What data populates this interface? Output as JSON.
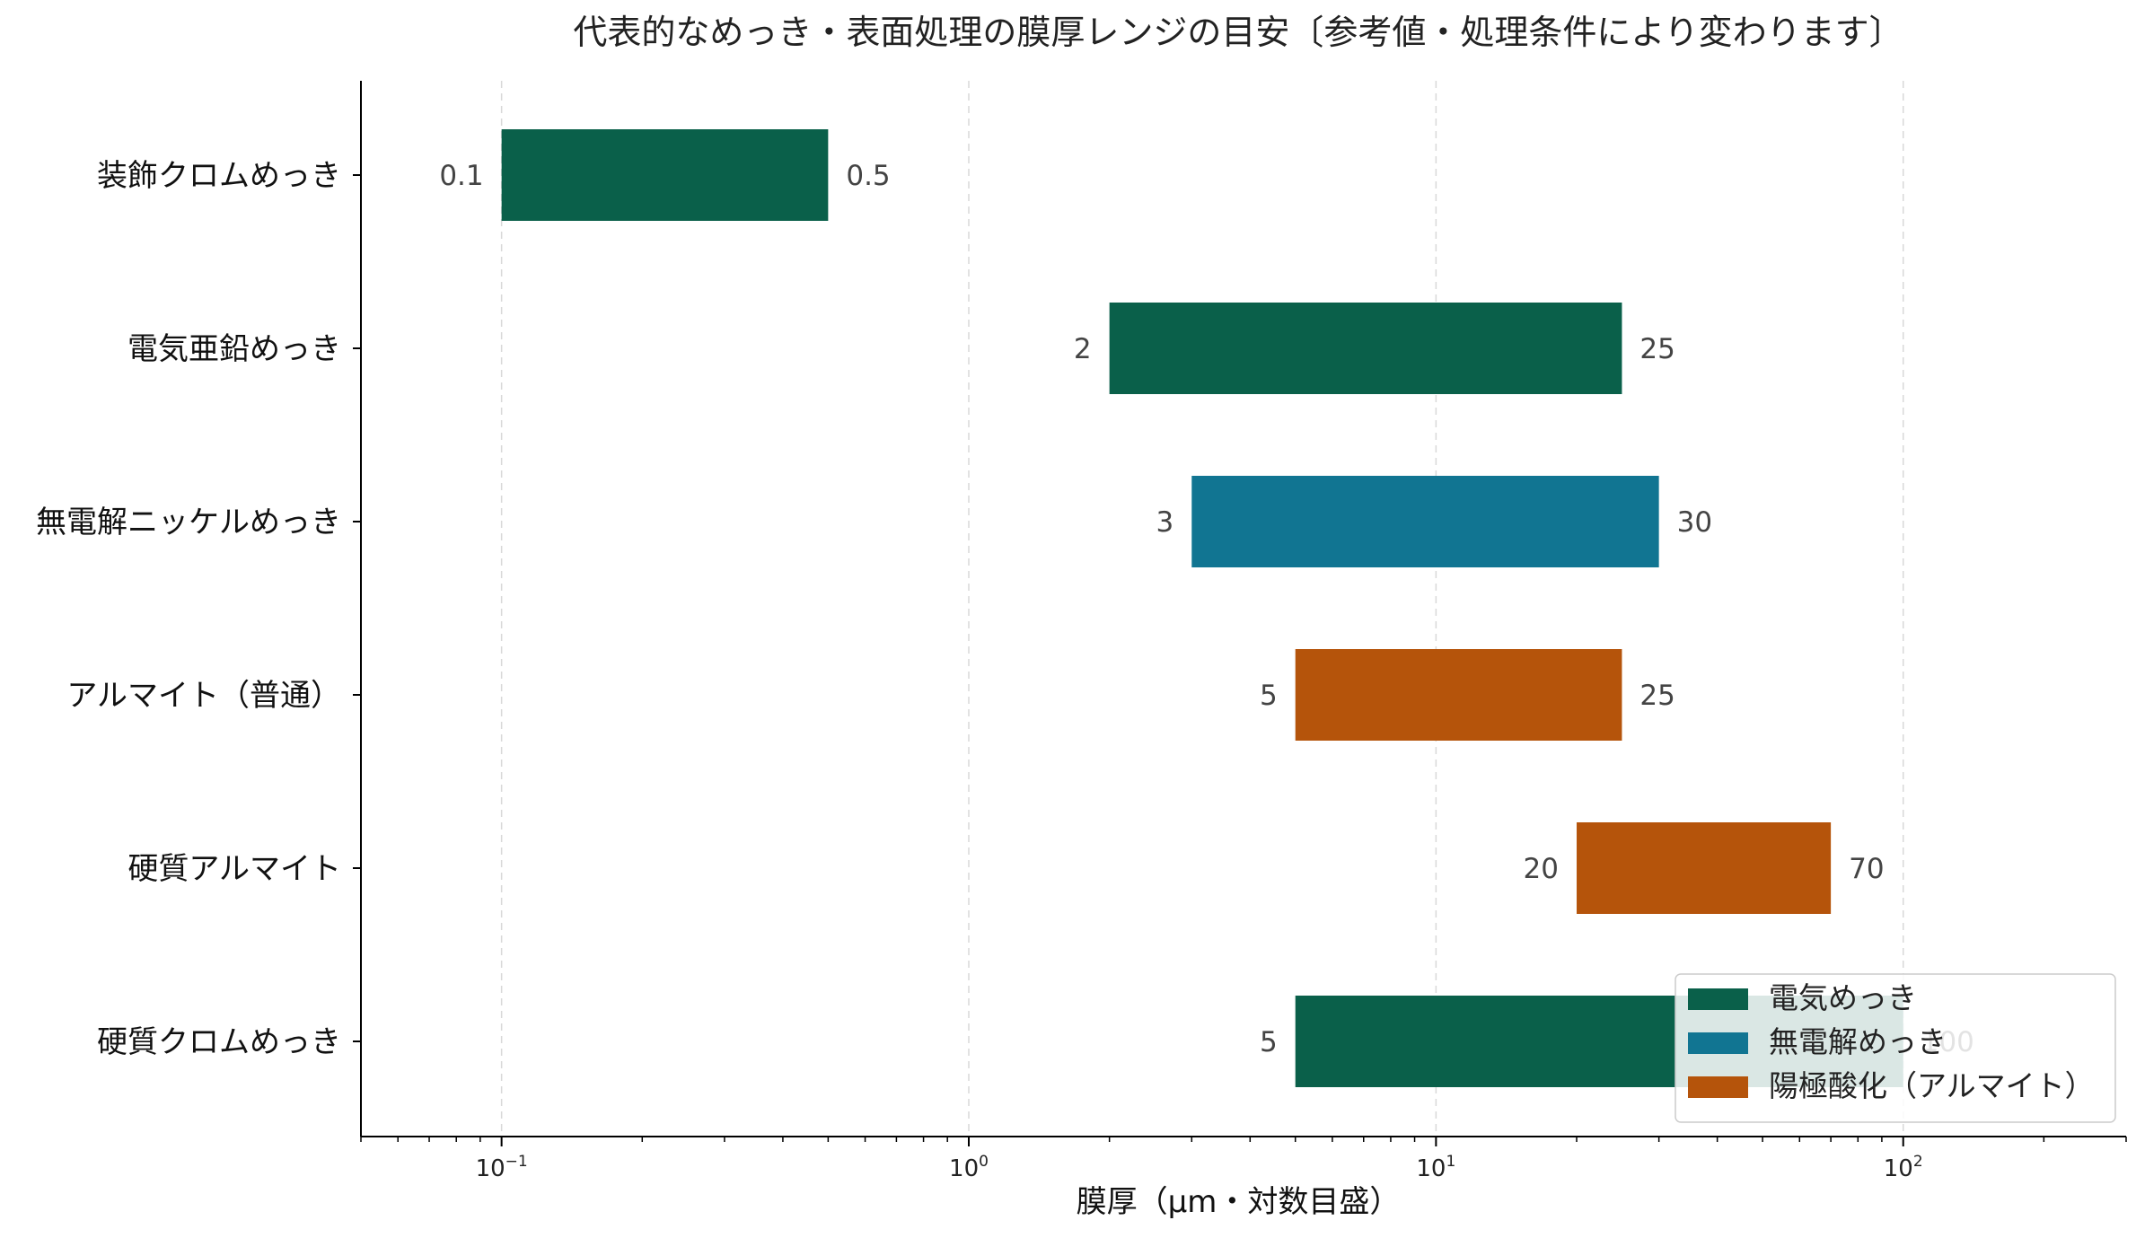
{
  "chart_data": {
    "type": "bar",
    "orientation": "horizontal-range",
    "title": "代表的なめっき・表面処理の膜厚レンジの目安〔参考値・処理条件により変わります〕",
    "xlabel": "膜厚（µm・対数目盛）",
    "ylabel": "",
    "xscale": "log",
    "xlim": [
      0.05,
      300
    ],
    "xticks": [
      {
        "value": 0.1,
        "base": "10",
        "exp": "−1"
      },
      {
        "value": 1,
        "base": "10",
        "exp": "0"
      },
      {
        "value": 10,
        "base": "10",
        "exp": "1"
      },
      {
        "value": 100,
        "base": "10",
        "exp": "2"
      }
    ],
    "grid": "vertical dashed at major ticks",
    "legend_position": "lower-right",
    "categories": [
      "装飾クロムめっき",
      "電気亜鉛めっき",
      "無電解ニッケルめっき",
      "アルマイト（普通）",
      "硬質アルマイト",
      "硬質クロムめっき"
    ],
    "bars": [
      {
        "category": "装飾クロムめっき",
        "min": 0.1,
        "max": 0.5,
        "min_label": "0.1",
        "max_label": "0.5",
        "group": 0
      },
      {
        "category": "電気亜鉛めっき",
        "min": 2,
        "max": 25,
        "min_label": "2",
        "max_label": "25",
        "group": 0
      },
      {
        "category": "無電解ニッケルめっき",
        "min": 3,
        "max": 30,
        "min_label": "3",
        "max_label": "30",
        "group": 1
      },
      {
        "category": "アルマイト（普通）",
        "min": 5,
        "max": 25,
        "min_label": "5",
        "max_label": "25",
        "group": 2
      },
      {
        "category": "硬質アルマイト",
        "min": 20,
        "max": 70,
        "min_label": "20",
        "max_label": "70",
        "group": 2
      },
      {
        "category": "硬質クロムめっき",
        "min": 5,
        "max": 100,
        "min_label": "5",
        "max_label": "100",
        "group": 0
      }
    ],
    "series": [
      {
        "name": "電気めっき",
        "color": "#0a604a"
      },
      {
        "name": "無電解めっき",
        "color": "#117592"
      },
      {
        "name": "陽極酸化（アルマイト）",
        "color": "#b5540b"
      }
    ]
  }
}
